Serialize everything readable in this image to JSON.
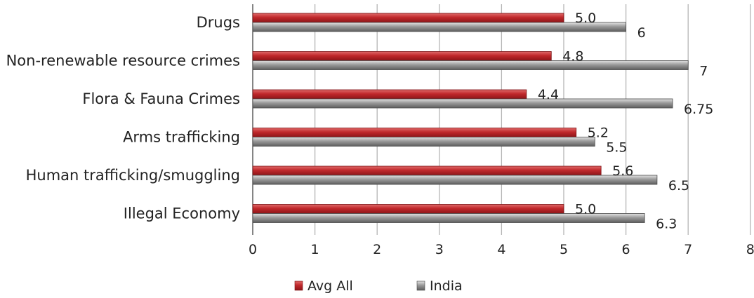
{
  "chart_data": {
    "type": "bar",
    "orientation": "horizontal",
    "title": "",
    "xlabel": "",
    "ylabel": "",
    "categories": [
      "Drugs",
      "Non-renewable resource crimes",
      "Flora & Fauna Crimes",
      "Arms trafficking",
      "Human trafficking/smuggling",
      "Illegal Economy"
    ],
    "series": [
      {
        "name": "Avg All",
        "color": "#c0282b",
        "values": [
          5.0,
          4.8,
          4.4,
          5.2,
          5.6,
          5.0
        ],
        "labels": [
          "5.0",
          "4.8",
          "4.4",
          "5.2",
          "5.6",
          "5.0"
        ]
      },
      {
        "name": "India",
        "color": "#8f8f8f",
        "values": [
          6,
          7,
          6.75,
          5.5,
          6.5,
          6.3
        ],
        "labels": [
          "6",
          "7",
          "6.75",
          "5.5",
          "6.5",
          "6.3"
        ]
      }
    ],
    "xlim": [
      0,
      8
    ],
    "xticks": [
      "0",
      "1",
      "2",
      "3",
      "4",
      "5",
      "6",
      "7",
      "8"
    ],
    "grid": "vertical",
    "legend": "bottom"
  }
}
